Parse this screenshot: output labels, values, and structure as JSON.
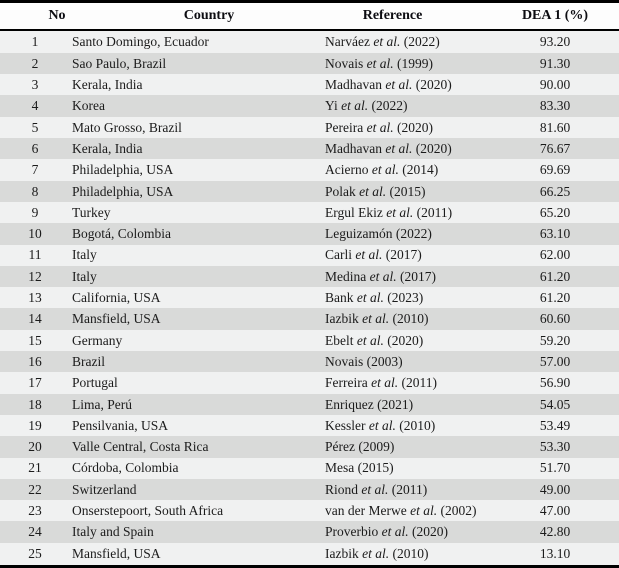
{
  "colors": {
    "border": "#000000",
    "header_bg": "#fdfdfd",
    "row_odd": "#f0f1f1",
    "row_even": "#d9dad9"
  },
  "table": {
    "columns": [
      "No",
      "Country",
      "Reference",
      "DEA 1 (%)"
    ],
    "rows": [
      {
        "no": "1",
        "country": "Santo Domingo, Ecuador",
        "ref_pre": "Narváez ",
        "ref_etal": "et al.",
        "ref_post": " (2022)",
        "dea": "93.20"
      },
      {
        "no": "2",
        "country": "Sao Paulo, Brazil",
        "ref_pre": "Novais ",
        "ref_etal": "et al.",
        "ref_post": " (1999)",
        "dea": "91.30"
      },
      {
        "no": "3",
        "country": "Kerala, India",
        "ref_pre": "Madhavan ",
        "ref_etal": "et al.",
        "ref_post": " (2020)",
        "dea": "90.00"
      },
      {
        "no": "4",
        "country": "Korea",
        "ref_pre": "Yi ",
        "ref_etal": "et al.",
        "ref_post": " (2022)",
        "dea": "83.30"
      },
      {
        "no": "5",
        "country": "Mato Grosso, Brazil",
        "ref_pre": "Pereira ",
        "ref_etal": "et al.",
        "ref_post": " (2020)",
        "dea": "81.60"
      },
      {
        "no": "6",
        "country": "Kerala, India",
        "ref_pre": "Madhavan ",
        "ref_etal": "et al.",
        "ref_post": " (2020)",
        "dea": "76.67"
      },
      {
        "no": "7",
        "country": "Philadelphia, USA",
        "ref_pre": "Acierno ",
        "ref_etal": "et al.",
        "ref_post": " (2014)",
        "dea": "69.69"
      },
      {
        "no": "8",
        "country": "Philadelphia, USA",
        "ref_pre": "Polak ",
        "ref_etal": "et al.",
        "ref_post": " (2015)",
        "dea": "66.25"
      },
      {
        "no": "9",
        "country": "Turkey",
        "ref_pre": "Ergul Ekiz ",
        "ref_etal": "et al.",
        "ref_post": " (2011)",
        "dea": "65.20"
      },
      {
        "no": "10",
        "country": "Bogotá, Colombia",
        "ref_pre": "Leguizamón (2022)",
        "ref_etal": "",
        "ref_post": "",
        "dea": "63.10"
      },
      {
        "no": "11",
        "country": "Italy",
        "ref_pre": "Carli ",
        "ref_etal": "et al.",
        "ref_post": " (2017)",
        "dea": "62.00"
      },
      {
        "no": "12",
        "country": "Italy",
        "ref_pre": "Medina ",
        "ref_etal": "et al.",
        "ref_post": " (2017)",
        "dea": "61.20"
      },
      {
        "no": "13",
        "country": "California, USA",
        "ref_pre": "Bank ",
        "ref_etal": "et al.",
        "ref_post": " (2023)",
        "dea": "61.20"
      },
      {
        "no": "14",
        "country": "Mansfield, USA",
        "ref_pre": "Iazbik ",
        "ref_etal": "et al.",
        "ref_post": " (2010)",
        "dea": "60.60"
      },
      {
        "no": "15",
        "country": "Germany",
        "ref_pre": "Ebelt ",
        "ref_etal": "et al.",
        "ref_post": " (2020)",
        "dea": "59.20"
      },
      {
        "no": "16",
        "country": "Brazil",
        "ref_pre": "Novais (2003)",
        "ref_etal": "",
        "ref_post": "",
        "dea": "57.00"
      },
      {
        "no": "17",
        "country": "Portugal",
        "ref_pre": "Ferreira ",
        "ref_etal": "et al.",
        "ref_post": " (2011)",
        "dea": "56.90"
      },
      {
        "no": "18",
        "country": "Lima, Perú",
        "ref_pre": "Enriquez (2021)",
        "ref_etal": "",
        "ref_post": "",
        "dea": "54.05"
      },
      {
        "no": "19",
        "country": "Pensilvania, USA",
        "ref_pre": "Kessler ",
        "ref_etal": "et al.",
        "ref_post": " (2010)",
        "dea": "53.49"
      },
      {
        "no": "20",
        "country": "Valle Central, Costa Rica",
        "ref_pre": "Pérez (2009)",
        "ref_etal": "",
        "ref_post": "",
        "dea": "53.30"
      },
      {
        "no": "21",
        "country": "Córdoba, Colombia",
        "ref_pre": "Mesa (2015)",
        "ref_etal": "",
        "ref_post": "",
        "dea": "51.70"
      },
      {
        "no": "22",
        "country": "Switzerland",
        "ref_pre": "Riond ",
        "ref_etal": "et al.",
        "ref_post": " (2011)",
        "dea": "49.00"
      },
      {
        "no": "23",
        "country": "Onserstepoort, South Africa",
        "ref_pre": "van der Merwe ",
        "ref_etal": "et al.",
        "ref_post": " (2002)",
        "dea": "47.00"
      },
      {
        "no": "24",
        "country": "Italy and Spain",
        "ref_pre": "Proverbio ",
        "ref_etal": "et al.",
        "ref_post": " (2020)",
        "dea": "42.80"
      },
      {
        "no": "25",
        "country": "Mansfield, USA",
        "ref_pre": "Iazbik ",
        "ref_etal": "et al.",
        "ref_post": " (2010)",
        "dea": "13.10"
      }
    ]
  }
}
